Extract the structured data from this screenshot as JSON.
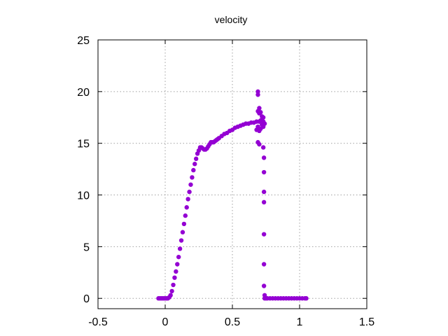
{
  "chart_data": {
    "type": "scatter",
    "title": "velocity",
    "xlabel": "",
    "ylabel": "",
    "xlim": [
      -0.5,
      1.5
    ],
    "ylim": [
      -1,
      25
    ],
    "grid": true,
    "legend": "none",
    "marker_color": "#9400d3",
    "x_ticks": [
      {
        "value": -0.5,
        "label": "-0.5"
      },
      {
        "value": 0,
        "label": "0"
      },
      {
        "value": 0.5,
        "label": "0.5"
      },
      {
        "value": 1,
        "label": "1"
      },
      {
        "value": 1.5,
        "label": "1.5"
      }
    ],
    "y_ticks": [
      {
        "value": 0,
        "label": "0"
      },
      {
        "value": 5,
        "label": "5"
      },
      {
        "value": 10,
        "label": "10"
      },
      {
        "value": 15,
        "label": "15"
      },
      {
        "value": 20,
        "label": "20"
      },
      {
        "value": 25,
        "label": "25"
      }
    ],
    "series": [
      {
        "points": [
          [
            -0.05,
            0.0
          ],
          [
            -0.04,
            0.0
          ],
          [
            -0.03,
            0.0
          ],
          [
            -0.02,
            0.0
          ],
          [
            -0.01,
            0.0
          ],
          [
            0.0,
            0.0
          ],
          [
            0.01,
            0.0
          ],
          [
            0.02,
            0.0
          ],
          [
            0.03,
            0.1
          ],
          [
            0.04,
            0.3
          ],
          [
            0.05,
            0.7
          ],
          [
            0.06,
            1.3
          ],
          [
            0.07,
            2.0
          ],
          [
            0.08,
            2.6
          ],
          [
            0.09,
            3.3
          ],
          [
            0.1,
            4.0
          ],
          [
            0.11,
            4.8
          ],
          [
            0.12,
            5.6
          ],
          [
            0.13,
            6.4
          ],
          [
            0.14,
            7.2
          ],
          [
            0.15,
            8.0
          ],
          [
            0.16,
            8.8
          ],
          [
            0.17,
            9.6
          ],
          [
            0.18,
            10.3
          ],
          [
            0.19,
            11.0
          ],
          [
            0.2,
            11.7
          ],
          [
            0.21,
            12.4
          ],
          [
            0.22,
            13.0
          ],
          [
            0.23,
            13.5
          ],
          [
            0.24,
            14.0
          ],
          [
            0.25,
            14.3
          ],
          [
            0.26,
            14.6
          ],
          [
            0.27,
            14.6
          ],
          [
            0.28,
            14.5
          ],
          [
            0.29,
            14.4
          ],
          [
            0.3,
            14.4
          ],
          [
            0.31,
            14.5
          ],
          [
            0.32,
            14.7
          ],
          [
            0.33,
            14.9
          ],
          [
            0.34,
            15.1
          ],
          [
            0.35,
            15.1
          ],
          [
            0.36,
            15.1
          ],
          [
            0.37,
            15.2
          ],
          [
            0.38,
            15.3
          ],
          [
            0.39,
            15.4
          ],
          [
            0.4,
            15.5
          ],
          [
            0.42,
            15.7
          ],
          [
            0.44,
            15.9
          ],
          [
            0.46,
            16.0
          ],
          [
            0.48,
            16.2
          ],
          [
            0.5,
            16.3
          ],
          [
            0.52,
            16.5
          ],
          [
            0.54,
            16.6
          ],
          [
            0.56,
            16.7
          ],
          [
            0.58,
            16.8
          ],
          [
            0.6,
            16.9
          ],
          [
            0.62,
            16.9
          ],
          [
            0.64,
            17.0
          ],
          [
            0.66,
            17.0
          ],
          [
            0.68,
            17.1
          ],
          [
            0.7,
            17.1
          ],
          [
            0.71,
            17.2
          ],
          [
            0.72,
            17.3
          ],
          [
            0.73,
            17.1
          ],
          [
            0.74,
            16.9
          ],
          [
            0.69,
            20.0
          ],
          [
            0.69,
            19.7
          ],
          [
            0.69,
            18.1
          ],
          [
            0.7,
            18.4
          ],
          [
            0.7,
            17.9
          ],
          [
            0.71,
            18.0
          ],
          [
            0.72,
            17.6
          ],
          [
            0.73,
            17.5
          ],
          [
            0.68,
            16.3
          ],
          [
            0.69,
            16.6
          ],
          [
            0.7,
            16.2
          ],
          [
            0.71,
            16.4
          ],
          [
            0.72,
            16.8
          ],
          [
            0.73,
            16.6
          ],
          [
            0.69,
            15.1
          ],
          [
            0.7,
            14.9
          ],
          [
            0.73,
            14.6
          ],
          [
            0.735,
            13.6
          ],
          [
            0.735,
            12.2
          ],
          [
            0.735,
            10.3
          ],
          [
            0.735,
            9.3
          ],
          [
            0.735,
            6.2
          ],
          [
            0.735,
            3.3
          ],
          [
            0.735,
            1.2
          ],
          [
            0.74,
            0.3
          ],
          [
            0.74,
            0.0
          ],
          [
            0.75,
            0.0
          ],
          [
            0.76,
            0.0
          ],
          [
            0.78,
            0.0
          ],
          [
            0.8,
            0.0
          ],
          [
            0.82,
            0.0
          ],
          [
            0.84,
            0.0
          ],
          [
            0.86,
            0.0
          ],
          [
            0.88,
            0.0
          ],
          [
            0.9,
            0.0
          ],
          [
            0.92,
            0.0
          ],
          [
            0.94,
            0.0
          ],
          [
            0.96,
            0.0
          ],
          [
            0.98,
            0.0
          ],
          [
            1.0,
            0.0
          ],
          [
            1.02,
            0.0
          ],
          [
            1.04,
            0.0
          ],
          [
            1.05,
            0.0
          ]
        ]
      }
    ]
  }
}
